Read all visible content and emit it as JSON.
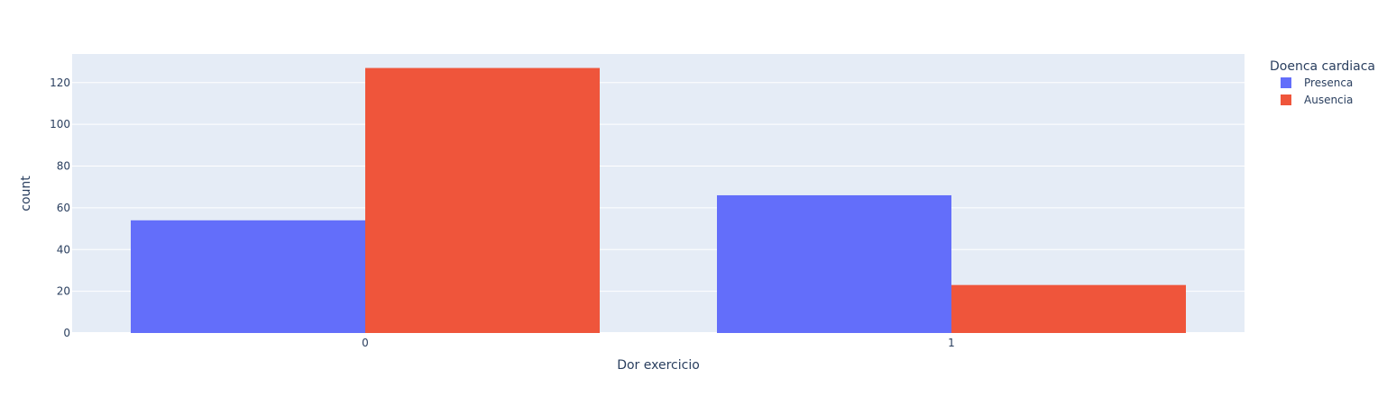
{
  "chart_data": {
    "type": "bar",
    "barmode": "group",
    "title": "",
    "xlabel": "Dor exercicio",
    "ylabel": "count",
    "categories": [
      "0",
      "1"
    ],
    "ylim": [
      0,
      133.7
    ],
    "yticks": [
      0,
      20,
      40,
      60,
      80,
      100,
      120
    ],
    "grid": true,
    "legend": {
      "title": "Doenca cardiaca",
      "position": "top-right"
    },
    "series": [
      {
        "name": "Presenca",
        "color": "#636efa",
        "values": [
          54,
          66
        ]
      },
      {
        "name": "Ausencia",
        "color": "#ef553b",
        "values": [
          127,
          23
        ]
      }
    ],
    "colors": {
      "plot_bg": "#e5ecf6",
      "grid": "#ffffff",
      "text": "#2a3f5f"
    }
  }
}
